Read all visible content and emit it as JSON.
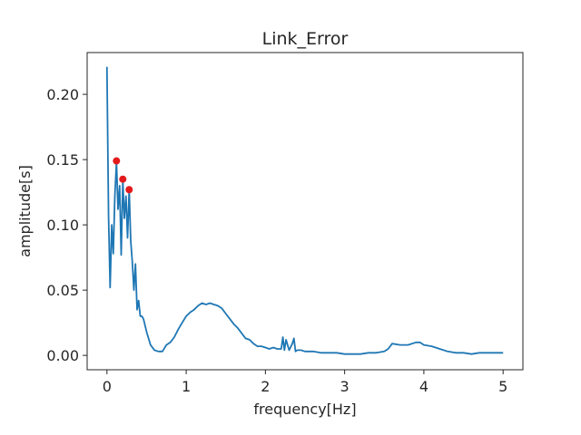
{
  "chart_data": {
    "type": "line",
    "title": "Link_Error",
    "xlabel": "frequency[Hz]",
    "ylabel": "amplitude[s]",
    "xlim": [
      -0.25,
      5.25
    ],
    "ylim": [
      -0.011,
      0.232
    ],
    "xticks": [
      0,
      1,
      2,
      3,
      4,
      5
    ],
    "xtick_labels": [
      "0",
      "1",
      "2",
      "3",
      "4",
      "5"
    ],
    "yticks": [
      0.0,
      0.05,
      0.1,
      0.15,
      0.2
    ],
    "ytick_labels": [
      "0.00",
      "0.05",
      "0.10",
      "0.15",
      "0.20"
    ],
    "grid": false,
    "line_color": "#1f77b4",
    "marker_color": "#e31a1c",
    "series": [
      {
        "x": [
          0.0,
          0.02,
          0.04,
          0.06,
          0.08,
          0.1,
          0.12,
          0.14,
          0.16,
          0.18,
          0.2,
          0.22,
          0.24,
          0.26,
          0.28,
          0.3,
          0.32,
          0.34,
          0.36,
          0.38,
          0.4,
          0.42,
          0.44,
          0.46,
          0.5,
          0.55,
          0.6,
          0.65,
          0.7,
          0.75,
          0.8,
          0.85,
          0.9,
          0.95,
          1.0,
          1.05,
          1.1,
          1.15,
          1.2,
          1.25,
          1.3,
          1.35,
          1.4,
          1.45,
          1.5,
          1.55,
          1.6,
          1.65,
          1.7,
          1.75,
          1.8,
          1.85,
          1.9,
          1.95,
          2.0,
          2.05,
          2.1,
          2.15,
          2.2,
          2.22,
          2.24,
          2.26,
          2.3,
          2.34,
          2.36,
          2.38,
          2.4,
          2.45,
          2.5,
          2.6,
          2.7,
          2.8,
          2.9,
          3.0,
          3.1,
          3.2,
          3.3,
          3.4,
          3.5,
          3.55,
          3.6,
          3.7,
          3.8,
          3.9,
          3.95,
          4.0,
          4.1,
          4.2,
          4.3,
          4.4,
          4.5,
          4.6,
          4.7,
          4.8,
          4.9,
          5.0
        ],
        "y": [
          0.221,
          0.106,
          0.052,
          0.1,
          0.078,
          0.122,
          0.148,
          0.112,
          0.13,
          0.077,
          0.134,
          0.105,
          0.122,
          0.09,
          0.127,
          0.088,
          0.072,
          0.05,
          0.07,
          0.035,
          0.042,
          0.03,
          0.03,
          0.028,
          0.018,
          0.008,
          0.004,
          0.003,
          0.003,
          0.008,
          0.01,
          0.014,
          0.02,
          0.025,
          0.03,
          0.033,
          0.035,
          0.038,
          0.04,
          0.039,
          0.04,
          0.039,
          0.038,
          0.036,
          0.032,
          0.028,
          0.024,
          0.021,
          0.017,
          0.013,
          0.012,
          0.009,
          0.007,
          0.007,
          0.006,
          0.005,
          0.006,
          0.005,
          0.005,
          0.014,
          0.004,
          0.012,
          0.004,
          0.009,
          0.013,
          0.003,
          0.004,
          0.004,
          0.003,
          0.003,
          0.002,
          0.002,
          0.002,
          0.001,
          0.001,
          0.001,
          0.002,
          0.002,
          0.003,
          0.005,
          0.009,
          0.008,
          0.008,
          0.01,
          0.01,
          0.008,
          0.007,
          0.005,
          0.003,
          0.002,
          0.002,
          0.001,
          0.002,
          0.002,
          0.002,
          0.002
        ]
      }
    ],
    "peaks": [
      {
        "x": 0.12,
        "y": 0.149
      },
      {
        "x": 0.2,
        "y": 0.135
      },
      {
        "x": 0.28,
        "y": 0.127
      }
    ]
  }
}
